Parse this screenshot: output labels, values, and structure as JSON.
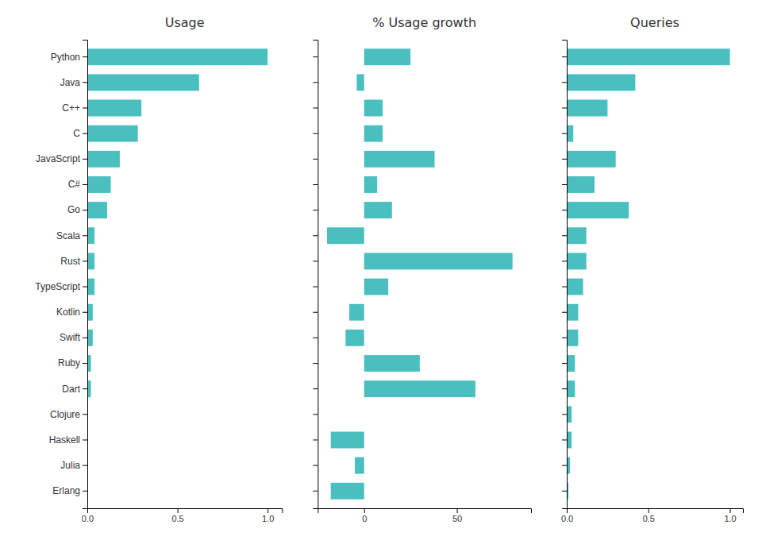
{
  "chart_data": [
    {
      "type": "bar",
      "orientation": "horizontal",
      "title": "Usage",
      "categories": [
        "Python",
        "Java",
        "C++",
        "C",
        "JavaScript",
        "C#",
        "Go",
        "Scala",
        "Rust",
        "TypeScript",
        "Kotlin",
        "Swift",
        "Ruby",
        "Dart",
        "Clojure",
        "Haskell",
        "Julia",
        "Erlang"
      ],
      "values": [
        1.0,
        0.62,
        0.3,
        0.28,
        0.18,
        0.13,
        0.11,
        0.04,
        0.04,
        0.04,
        0.03,
        0.03,
        0.02,
        0.02,
        0.0,
        0.0,
        0.0,
        0.0
      ],
      "color": "#4ABFBF",
      "xlim": [
        0,
        1.08
      ],
      "xticks": [
        {
          "value": 0,
          "label": "0.0"
        },
        {
          "value": 0.5,
          "label": "0.5"
        },
        {
          "value": 1,
          "label": "1.0"
        }
      ],
      "grid": false
    },
    {
      "type": "bar",
      "orientation": "horizontal",
      "title": "% Usage growth",
      "categories": [
        "Python",
        "Java",
        "C++",
        "C",
        "JavaScript",
        "C#",
        "Go",
        "Scala",
        "Rust",
        "TypeScript",
        "Kotlin",
        "Swift",
        "Ruby",
        "Dart",
        "Clojure",
        "Haskell",
        "Julia",
        "Erlang"
      ],
      "values": [
        25,
        -4,
        10,
        10,
        38,
        7,
        15,
        -20,
        80,
        13,
        -8,
        -10,
        30,
        60,
        0,
        -18,
        -5,
        -18
      ],
      "color": "#4ABFBF",
      "xlim": [
        -25,
        90
      ],
      "xticks": [
        0,
        50
      ],
      "grid": false,
      "tick_labels": "x"
    },
    {
      "type": "bar",
      "orientation": "horizontal",
      "title": "Queries",
      "categories": [
        "Python",
        "Java",
        "C++",
        "C",
        "JavaScript",
        "C#",
        "Go",
        "Scala",
        "Rust",
        "TypeScript",
        "Kotlin",
        "Swift",
        "Ruby",
        "Dart",
        "Clojure",
        "Haskell",
        "Julia",
        "Erlang"
      ],
      "values": [
        1.0,
        0.42,
        0.25,
        0.04,
        0.3,
        0.17,
        0.38,
        0.12,
        0.12,
        0.1,
        0.07,
        0.07,
        0.05,
        0.05,
        0.03,
        0.03,
        0.02,
        0.01
      ],
      "color": "#4ABFBF",
      "xlim": [
        0,
        1.08
      ],
      "xticks": [
        {
          "value": 0,
          "label": "0.0"
        },
        {
          "value": 0.5,
          "label": "0.5"
        },
        {
          "value": 1,
          "label": "1.0"
        }
      ],
      "grid": false,
      "tick_labels": "x"
    }
  ]
}
